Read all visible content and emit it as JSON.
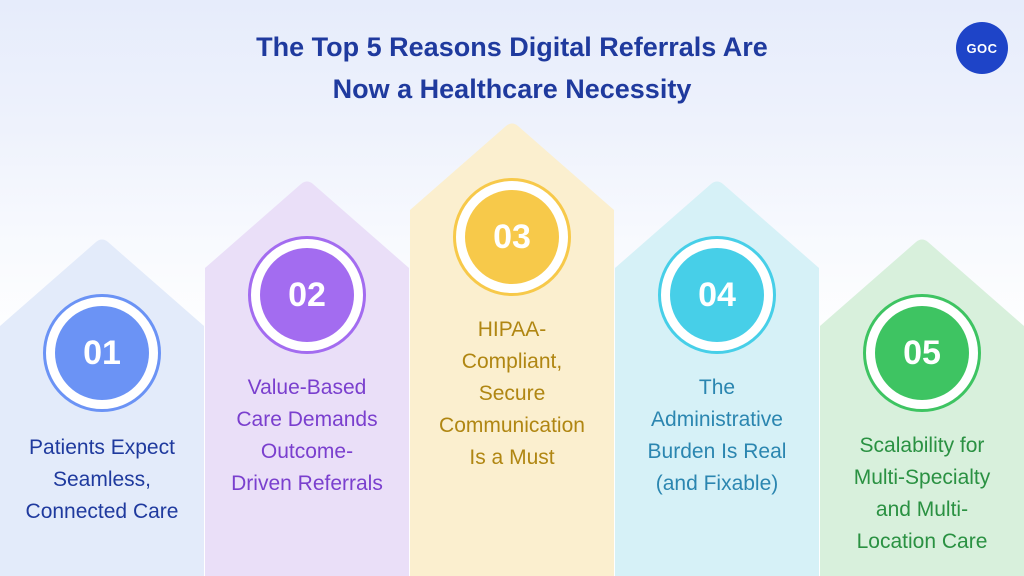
{
  "title": {
    "line1": "The Top 5 Reasons Digital Referrals Are",
    "line2": "Now a Healthcare Necessity"
  },
  "logo": "GOC",
  "columns": [
    {
      "number": "01",
      "lines": [
        "Patients Expect",
        "Seamless,",
        "Connected Care"
      ],
      "color": "#6b93f5",
      "panel_color": "#e3ebfa",
      "text_color": "#1f3a9e"
    },
    {
      "number": "02",
      "lines": [
        "Value-Based",
        "Care Demands",
        "Outcome-",
        "Driven Referrals"
      ],
      "color": "#a36cf0",
      "panel_color": "#eadff8",
      "text_color": "#7a3fce"
    },
    {
      "number": "03",
      "lines": [
        "HIPAA-",
        "Compliant,",
        "Secure",
        "Communication",
        "Is a Must"
      ],
      "color": "#f7c94a",
      "panel_color": "#fbefcf",
      "text_color": "#b08612"
    },
    {
      "number": "04",
      "lines": [
        "The",
        "Administrative",
        "Burden Is Real",
        "(and Fixable)"
      ],
      "color": "#47cfe8",
      "panel_color": "#d6f1f7",
      "text_color": "#2b86b0"
    },
    {
      "number": "05",
      "lines": [
        "Scalability for",
        "Multi-Specialty",
        "and Multi-",
        "Location Care"
      ],
      "color": "#3ec462",
      "panel_color": "#d8f0dc",
      "text_color": "#2a9142"
    }
  ]
}
